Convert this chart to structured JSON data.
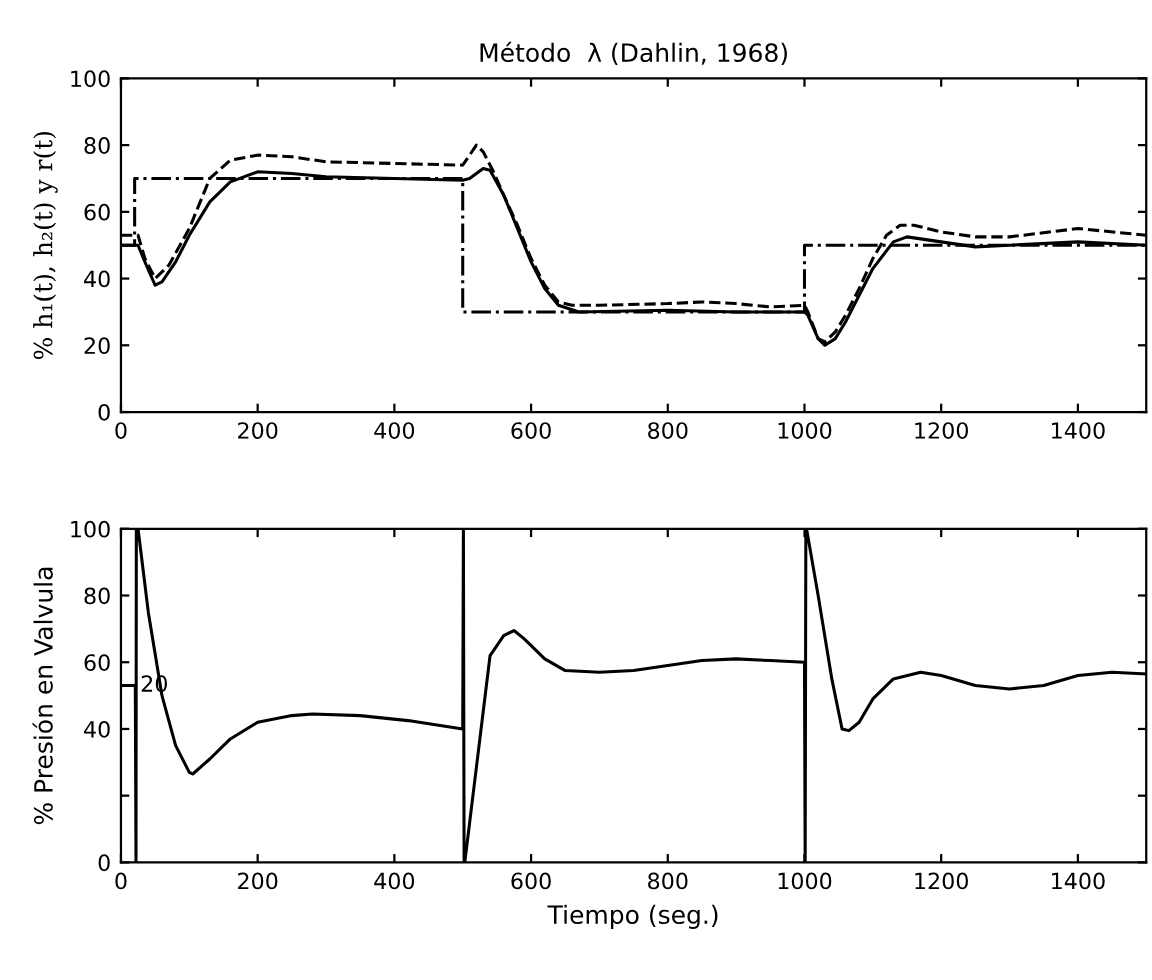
{
  "chart_data": [
    {
      "type": "line",
      "title": "Método  λ (Dahlin, 1968)",
      "ylabel": "% h₁(t), h₂(t) y r(t)",
      "xlim": [
        0,
        1500
      ],
      "ylim": [
        0,
        100
      ],
      "xticks": [
        0,
        200,
        400,
        600,
        800,
        1000,
        1200,
        1400
      ],
      "yticks": [
        0,
        20,
        40,
        60,
        80,
        100
      ],
      "grid": false,
      "legend": false,
      "series": [
        {
          "color": "#000000",
          "line_style": "dashdot",
          "x": [
            0,
            20,
            20,
            500,
            500,
            1000,
            1000,
            1500
          ],
          "values": [
            50,
            50,
            70,
            70,
            30,
            30,
            50,
            50
          ]
        },
        {
          "color": "#000000",
          "line_style": "dashed",
          "x": [
            0,
            25,
            35,
            50,
            70,
            100,
            130,
            160,
            200,
            250,
            300,
            400,
            500,
            510,
            520,
            530,
            545,
            560,
            580,
            600,
            620,
            640,
            660,
            700,
            800,
            850,
            900,
            950,
            1000,
            1005,
            1020,
            1030,
            1045,
            1060,
            1080,
            1100,
            1120,
            1140,
            1160,
            1200,
            1250,
            1300,
            1400,
            1500
          ],
          "values": [
            53,
            53,
            46,
            40,
            44,
            55,
            70,
            75.5,
            77,
            76.5,
            75,
            74.5,
            74,
            77,
            80,
            78,
            72,
            65,
            56,
            46,
            38,
            33,
            32,
            32,
            32.5,
            33,
            32.5,
            31.5,
            32,
            30,
            22,
            21,
            24,
            29,
            37,
            46,
            53,
            56,
            56,
            54,
            52.5,
            52.5,
            55,
            53
          ]
        },
        {
          "color": "#000000",
          "line_style": "solid",
          "x": [
            0,
            25,
            35,
            50,
            60,
            80,
            100,
            130,
            160,
            200,
            250,
            300,
            400,
            500,
            510,
            530,
            540,
            560,
            580,
            600,
            620,
            640,
            670,
            800,
            900,
            1000,
            1005,
            1020,
            1030,
            1045,
            1060,
            1080,
            1100,
            1130,
            1150,
            1200,
            1250,
            1300,
            1400,
            1500
          ],
          "values": [
            50,
            50,
            45,
            38,
            39,
            45,
            53,
            63,
            69,
            72,
            71.5,
            70.5,
            70,
            69.5,
            70,
            73,
            72.5,
            65,
            55,
            45,
            37,
            32,
            30,
            30.5,
            30,
            30,
            29,
            22,
            20,
            22,
            27,
            35,
            43,
            51,
            52.5,
            51,
            49.5,
            50,
            51,
            50
          ]
        }
      ]
    },
    {
      "type": "line",
      "xlabel": "Tiempo (seg.)",
      "ylabel": "% Presión en Valvula",
      "xlim": [
        0,
        1500
      ],
      "ylim": [
        0,
        100
      ],
      "xticks": [
        0,
        200,
        400,
        600,
        800,
        1000,
        1200,
        1400
      ],
      "yticks": [
        0,
        {
          "value": 20,
          "label": null
        },
        40,
        60,
        80,
        100
      ],
      "annotations": [
        {
          "text": "20",
          "x": 22,
          "y": 53
        }
      ],
      "grid": false,
      "legend": false,
      "series": [
        {
          "color": "#000000",
          "line_style": "solid",
          "x": [
            0,
            21,
            22,
            22.5,
            25,
            40,
            60,
            80,
            100,
            105,
            130,
            160,
            200,
            250,
            280,
            350,
            420,
            500,
            501,
            502,
            503,
            540,
            560,
            575,
            590,
            620,
            650,
            700,
            750,
            800,
            850,
            900,
            950,
            1000,
            1001,
            1002,
            1003,
            1020,
            1040,
            1055,
            1065,
            1080,
            1100,
            1130,
            1170,
            1200,
            1250,
            1300,
            1350,
            1400,
            1450,
            1500
          ],
          "values": [
            53,
            53,
            0,
            100,
            100,
            75,
            50,
            35,
            27,
            26.5,
            31,
            37,
            42,
            44,
            44.5,
            44,
            42.5,
            40,
            100,
            0,
            0,
            62,
            68,
            69.5,
            67,
            61,
            57.5,
            57,
            57.5,
            59,
            60.5,
            61,
            60.5,
            60,
            0,
            100,
            100,
            80,
            55,
            40,
            39.5,
            42,
            49,
            55,
            57,
            56,
            53,
            52,
            53,
            56,
            57,
            56.5
          ]
        }
      ]
    }
  ]
}
